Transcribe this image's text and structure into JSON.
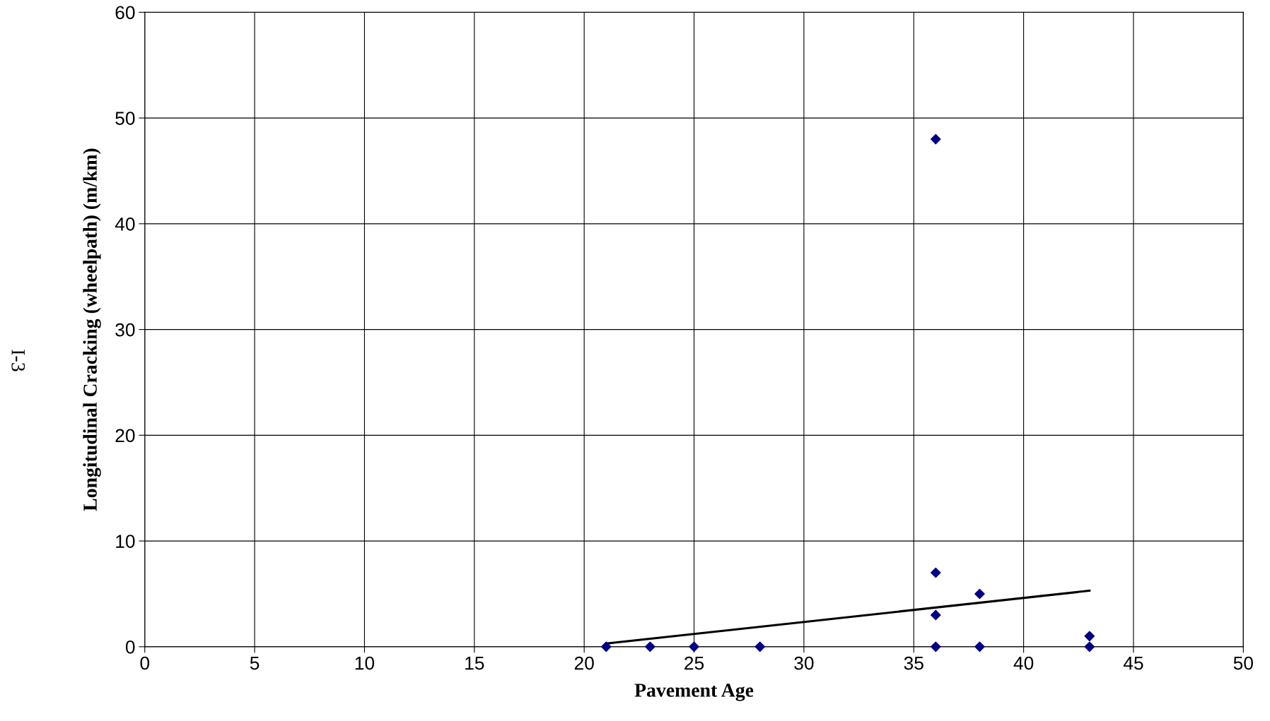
{
  "chart_data": {
    "type": "scatter",
    "xlabel": "Pavement Age",
    "ylabel": "Longitudinal Cracking (wheelpath) (m/km)",
    "annotations": [
      "I-3"
    ],
    "series": [
      {
        "color": "#000080",
        "marker": "diamond",
        "x": [
          21,
          23,
          25,
          28,
          36,
          36,
          36,
          36,
          38,
          38,
          43,
          43
        ],
        "values": [
          0,
          0,
          0,
          0,
          0,
          3,
          7,
          48,
          0,
          5,
          0,
          1
        ]
      },
      {
        "type": "line",
        "color": "#000000",
        "marker": "none",
        "x": [
          21,
          43
        ],
        "values": [
          0.3,
          5.3
        ]
      }
    ],
    "xlim": [
      0,
      50
    ],
    "xticks": [
      0,
      5,
      10,
      15,
      20,
      25,
      30,
      35,
      40,
      45,
      50
    ],
    "ylim": [
      0,
      60
    ],
    "yticks": [
      0,
      10,
      20,
      30,
      40,
      50,
      60
    ],
    "grid": true,
    "legend": false
  }
}
